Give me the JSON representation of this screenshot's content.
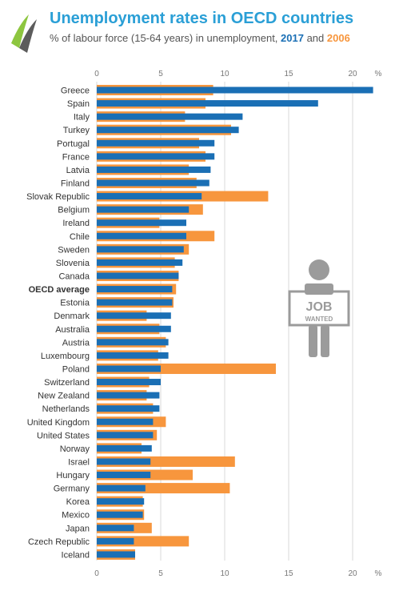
{
  "header": {
    "title": "Unemployment rates in OECD countries",
    "subtitle_prefix": "% of labour force (15-64 years) in unemployment, ",
    "year_a": "2017",
    "and_word": " and ",
    "year_b": "2006"
  },
  "badge": {
    "line1": "JOB",
    "line2": "WANTED"
  },
  "colors": {
    "series_2017": "#1a6fb5",
    "series_2006": "#f7963d",
    "title": "#2a9fd6",
    "grid": "#d9d9d9"
  },
  "chart_data": {
    "type": "bar",
    "orientation": "horizontal",
    "xlim": [
      0,
      22
    ],
    "xticks": [
      0,
      5,
      10,
      15,
      20
    ],
    "unit_label": "%",
    "grid": true,
    "categories": [
      "Greece",
      "Spain",
      "Italy",
      "Turkey",
      "Portugal",
      "France",
      "Latvia",
      "Finland",
      "Slovak Republic",
      "Belgium",
      "Ireland",
      "Chile",
      "Sweden",
      "Slovenia",
      "Canada",
      "OECD average",
      "Estonia",
      "Denmark",
      "Australia",
      "Austria",
      "Luxembourg",
      "Poland",
      "Switzerland",
      "New Zealand",
      "Netherlands",
      "United Kingdom",
      "United States",
      "Norway",
      "Israel",
      "Hungary",
      "Germany",
      "Korea",
      "Mexico",
      "Japan",
      "Czech Republic",
      "Iceland"
    ],
    "highlight_category": "OECD average",
    "series": [
      {
        "name": "2006",
        "values": [
          9.1,
          8.5,
          6.9,
          10.5,
          8.0,
          8.5,
          7.2,
          7.8,
          13.4,
          8.3,
          4.9,
          9.2,
          7.2,
          6.1,
          6.4,
          6.2,
          6.0,
          3.9,
          4.9,
          5.4,
          4.8,
          14.0,
          4.1,
          3.9,
          4.4,
          5.4,
          4.7,
          3.5,
          10.8,
          7.5,
          10.4,
          3.6,
          3.7,
          4.3,
          7.2,
          3.0
        ]
      },
      {
        "name": "2017",
        "values": [
          21.6,
          17.3,
          11.4,
          11.1,
          9.2,
          9.2,
          8.9,
          8.8,
          8.2,
          7.2,
          7.0,
          7.0,
          6.8,
          6.7,
          6.4,
          5.9,
          5.9,
          5.8,
          5.8,
          5.6,
          5.6,
          5.0,
          5.0,
          4.9,
          4.9,
          4.4,
          4.4,
          4.3,
          4.2,
          4.2,
          3.8,
          3.7,
          3.6,
          2.9,
          2.9,
          3.0
        ]
      }
    ]
  }
}
